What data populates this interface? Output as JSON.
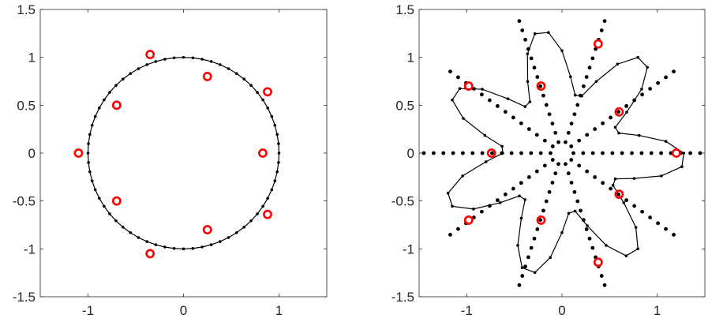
{
  "colors": {
    "curve": "#000000",
    "markers": "#ff0000",
    "axes": "#262626"
  },
  "chart_data": [
    {
      "type": "scatter",
      "title": "",
      "xlabel": "",
      "ylabel": "",
      "xlim": [
        -1.5,
        1.5
      ],
      "ylim": [
        -1.5,
        1.5
      ],
      "xticks": [
        "-1",
        "0",
        "1"
      ],
      "yticks": [
        "1.5",
        "1",
        "0.5",
        "0",
        "-0.5",
        "-1",
        "-1.5"
      ],
      "grid": false,
      "legend": "none",
      "curve": {
        "shape": "circle",
        "center": [
          0,
          0
        ],
        "radius": 1.0,
        "node_count": 64
      },
      "markers": [
        [
          -1.1,
          0.0
        ],
        [
          -0.7,
          0.5
        ],
        [
          -0.7,
          -0.5
        ],
        [
          -0.35,
          1.03
        ],
        [
          -0.35,
          -1.05
        ],
        [
          0.25,
          0.8
        ],
        [
          0.25,
          -0.8
        ],
        [
          0.83,
          0.0
        ],
        [
          0.88,
          0.64
        ],
        [
          0.88,
          -0.64
        ]
      ]
    },
    {
      "type": "scatter",
      "title": "",
      "xlabel": "",
      "ylabel": "",
      "xlim": [
        -1.5,
        1.5
      ],
      "ylim": [
        -1.5,
        1.5
      ],
      "xticks": [
        "-1",
        "0",
        "1"
      ],
      "yticks": [
        "1.5",
        "1",
        "0.5",
        "0",
        "-0.5",
        "-1",
        "-1.5"
      ],
      "grid": false,
      "legend": "none",
      "curve": {
        "shape": "seven-lobed star",
        "mean_radius": 0.95,
        "lobe_amplitude": 0.35,
        "lobes": 7,
        "node_count": 56
      },
      "markers": [
        [
          1.2,
          0.0
        ],
        [
          0.6,
          0.43
        ],
        [
          0.38,
          1.14
        ],
        [
          -0.22,
          0.7
        ],
        [
          -0.98,
          0.7
        ],
        [
          -0.74,
          0.0
        ],
        [
          -0.98,
          -0.7
        ],
        [
          -0.22,
          -0.7
        ],
        [
          0.38,
          -1.14
        ],
        [
          0.6,
          -0.43
        ]
      ],
      "rays": {
        "count": 10,
        "dots_per_ray": 14,
        "directions_deg": [
          0,
          36,
          72,
          108,
          144,
          180,
          216,
          252,
          288,
          324
        ],
        "inner_radius": 0.12,
        "outer_radius": 1.45
      }
    }
  ]
}
